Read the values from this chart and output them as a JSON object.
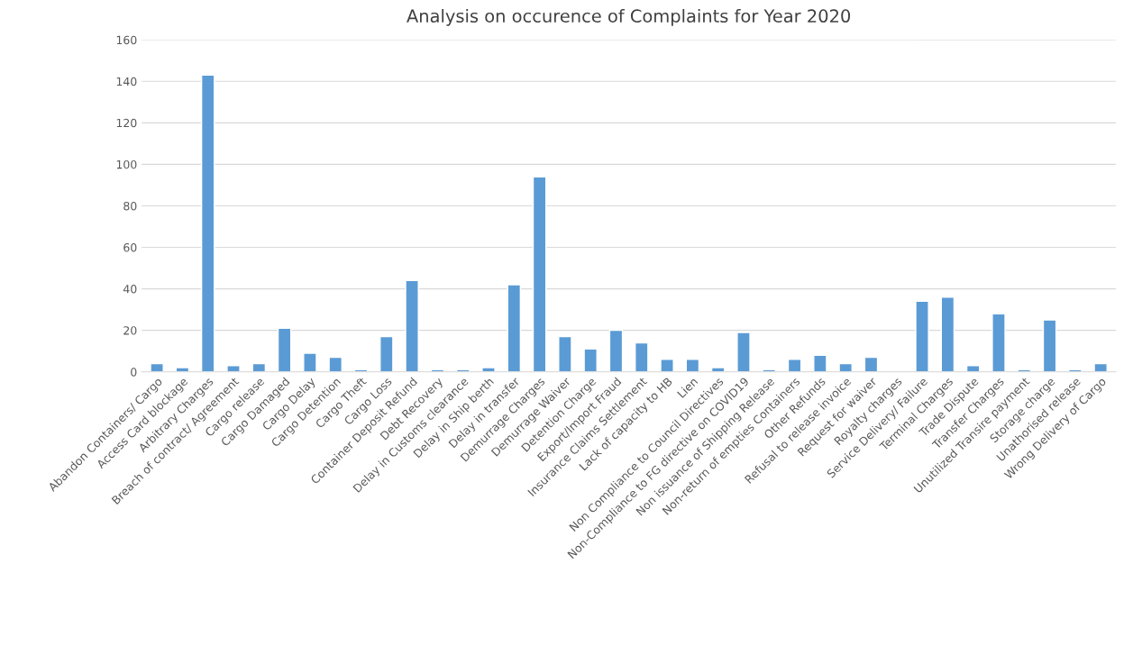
{
  "chart_data": {
    "type": "bar",
    "title": "Analysis on occurence of Complaints for Year 2020",
    "categories": [
      "Abandon Containers/ Cargo",
      "Access Card blockage",
      "Arbitrary Charges",
      "Breach of contract/ Agreement",
      "Cargo release",
      "Cargo Damaged",
      "Cargo Delay",
      "Cargo Detention",
      "Cargo Theft",
      "Cargo Loss",
      "Container Deposit Refund",
      "Debt Recovery",
      "Delay in Customs clearance",
      "Delay in Ship berth",
      "Delay in transfer",
      "Demurrage Charges",
      "Demurrage Waiver",
      "Detention Charge",
      "Export/Import Fraud",
      "Insurance Claims Settlement",
      "Lack of capacity to HB",
      "Lien",
      "Non Compliance to Council Directives",
      "Non-Compliance to FG directive on COVID19",
      "Non issuance of Shipping Release",
      "Non-return of empties Containers",
      "Other Refunds",
      "Refusal to release invoice",
      "Request for waiver",
      "Royalty charges",
      "Service Delivery/ Failure",
      "Terminal Charges",
      "Trade Dispute",
      "Transfer Charges",
      "Unutilized Transire payment",
      "Storage charge",
      "Unathorised release",
      "Wrong Delivery of Cargo"
    ],
    "values": [
      4,
      2,
      143,
      3,
      4,
      21,
      9,
      7,
      1,
      17,
      44,
      1,
      1,
      2,
      42,
      94,
      17,
      11,
      20,
      14,
      6,
      6,
      2,
      19,
      1,
      6,
      8,
      4,
      7,
      null,
      34,
      36,
      3,
      28,
      1,
      25,
      1,
      4
    ],
    "color": "#5b9bd5",
    "ylim": [
      0,
      160
    ],
    "yticks": [
      0,
      20,
      40,
      60,
      80,
      100,
      120,
      140,
      160
    ],
    "grid": "y"
  }
}
